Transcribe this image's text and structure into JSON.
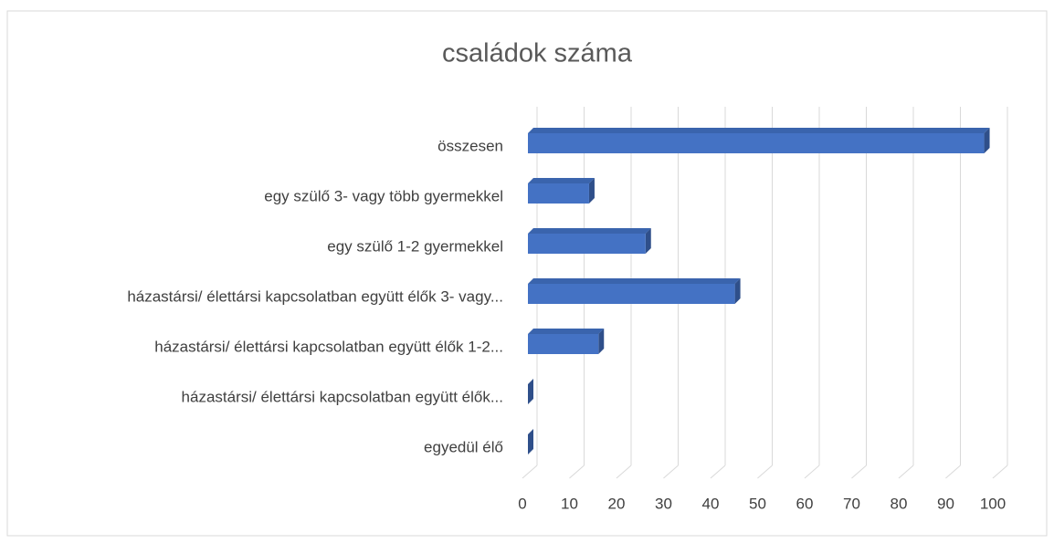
{
  "chart_data": {
    "type": "bar3d",
    "title": "családok száma",
    "categories": [
      "összesen",
      "egy szülő 3- vagy több gyermekkel",
      "egy szülő 1-2 gyermekkel",
      "házastársi/ élettársi kapcsolatban együtt élők 3- vagy...",
      "házastársi/ élettársi kapcsolatban együtt élők 1-2...",
      "házastársi/ élettársi kapcsolatban együtt élők...",
      "egyedül élő"
    ],
    "values": [
      97,
      13,
      25,
      44,
      15,
      0,
      0
    ],
    "color": "#4472c4",
    "xlim": [
      0,
      100
    ],
    "xticks": [
      0,
      10,
      20,
      30,
      40,
      50,
      60,
      70,
      80,
      90,
      100
    ],
    "grid": true
  }
}
